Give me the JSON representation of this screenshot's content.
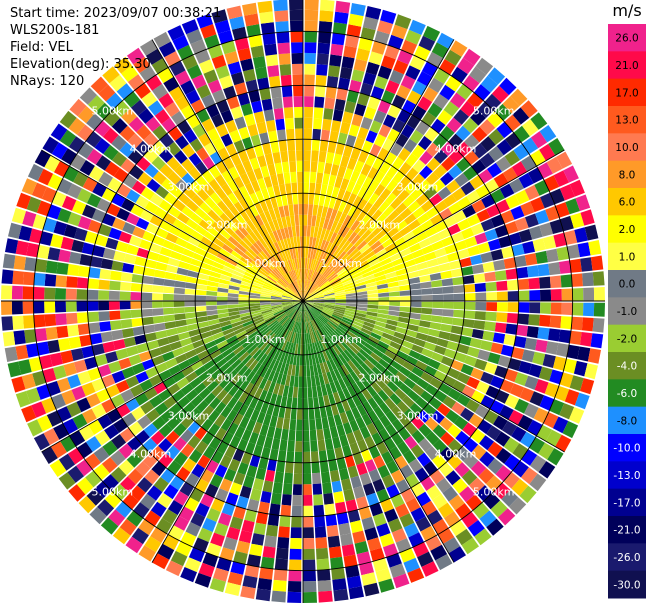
{
  "header": {
    "start_time": "Start time: 2023/09/07 00:38:21",
    "instrument": "WLS200s-181",
    "field": "Field: VEL",
    "elevation": "Elevation(deg): 35.30",
    "nrays": "NRays: 120"
  },
  "colorbar": {
    "unit": "m/s",
    "bins": [
      {
        "label": "26.0",
        "color": "#f0228c"
      },
      {
        "label": "21.0",
        "color": "#ff0a4a"
      },
      {
        "label": "17.0",
        "color": "#ff2a00"
      },
      {
        "label": "13.0",
        "color": "#ff5a1e"
      },
      {
        "label": "10.0",
        "color": "#ff7a50"
      },
      {
        "label": "8.0",
        "color": "#ff9a28"
      },
      {
        "label": "6.0",
        "color": "#ffc800"
      },
      {
        "label": "2.0",
        "color": "#ffff00"
      },
      {
        "label": "1.0",
        "color": "#ffff44"
      },
      {
        "label": "0.0",
        "color": "#707a86"
      },
      {
        "label": "-1.0",
        "color": "#8a8a8a"
      },
      {
        "label": "-2.0",
        "color": "#9acd32"
      },
      {
        "label": "-4.0",
        "color": "#6b8e23"
      },
      {
        "label": "-6.0",
        "color": "#228b22"
      },
      {
        "label": "-8.0",
        "color": "#1e90ff"
      },
      {
        "label": "-10.0",
        "color": "#0000ff"
      },
      {
        "label": "-13.0",
        "color": "#0000cd"
      },
      {
        "label": "-17.0",
        "color": "#000090"
      },
      {
        "label": "-21.0",
        "color": "#00005a"
      },
      {
        "label": "-26.0",
        "color": "#1a1a6e"
      },
      {
        "label": "-30.0",
        "color": "#101050"
      }
    ]
  },
  "chart_data": {
    "type": "heatmap",
    "projection": "polar-ppi",
    "field": "VEL",
    "nrays": 120,
    "range_rings_km": [
      1,
      2,
      3,
      4,
      5
    ],
    "ring_labels": [
      "1.00km",
      "2.00km",
      "3.00km",
      "4.00km",
      "5.00km"
    ],
    "max_range_km": 5.6,
    "vmin": -30.0,
    "vmax": 26.0,
    "azimuth_lines_deg": [
      0,
      30,
      60,
      90,
      120,
      150,
      180,
      210,
      240,
      270,
      300,
      330
    ],
    "pattern_description": "Positive velocities (yellow/orange, 2 to 10 m/s) in the northern half, near-zero grey band along the east-west axis, negative velocities (green, -2 to -6 m/s) in the southern half, noisy multi-colour data beyond about 3.5 km."
  }
}
